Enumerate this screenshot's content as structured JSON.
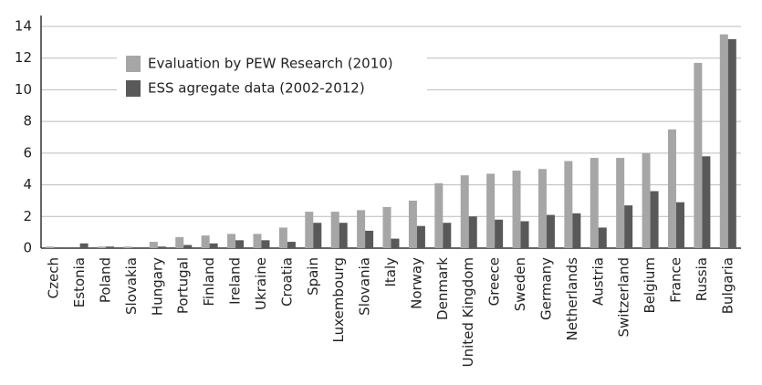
{
  "chart_data": {
    "type": "bar",
    "categories": [
      "Czech",
      "Estonia",
      "Poland",
      "Slovakia",
      "Hungary",
      "Portugal",
      "Finland",
      "Ireland",
      "Ukraine",
      "Croatia",
      "Spain",
      "Luxembourg",
      "Slovania",
      "Italy",
      "Norway",
      "Denmark",
      "United Kingdom",
      "Greece",
      "Sweden",
      "Germany",
      "Netherlands",
      "Austria",
      "Switzerland",
      "Belgium",
      "France",
      "Russia",
      "Bulgaria"
    ],
    "series": [
      {
        "name": "Evaluation by PEW Research (2010)",
        "color": "#a6a6a6",
        "values": [
          0.1,
          0,
          0.1,
          0.1,
          0.4,
          0.7,
          0.8,
          0.9,
          0.9,
          1.3,
          2.3,
          2.3,
          2.4,
          2.6,
          3.0,
          4.1,
          4.6,
          4.7,
          4.9,
          5.0,
          5.5,
          5.7,
          5.7,
          6.0,
          7.5,
          11.7,
          13.5
        ]
      },
      {
        "name": "ESS  agregate data (2002-2012)",
        "color": "#595959",
        "values": [
          0.05,
          0.3,
          0.1,
          0,
          0.1,
          0.2,
          0.3,
          0.5,
          0.5,
          0.4,
          1.6,
          1.6,
          1.1,
          0.6,
          1.4,
          1.6,
          2.0,
          1.8,
          1.7,
          2.1,
          2.2,
          1.3,
          2.7,
          3.6,
          2.9,
          5.8,
          13.2
        ]
      }
    ],
    "ylim": [
      0,
      14
    ],
    "yticks": [
      0,
      2,
      4,
      6,
      8,
      10,
      12,
      14
    ],
    "grid": true,
    "legend": "top-left"
  }
}
